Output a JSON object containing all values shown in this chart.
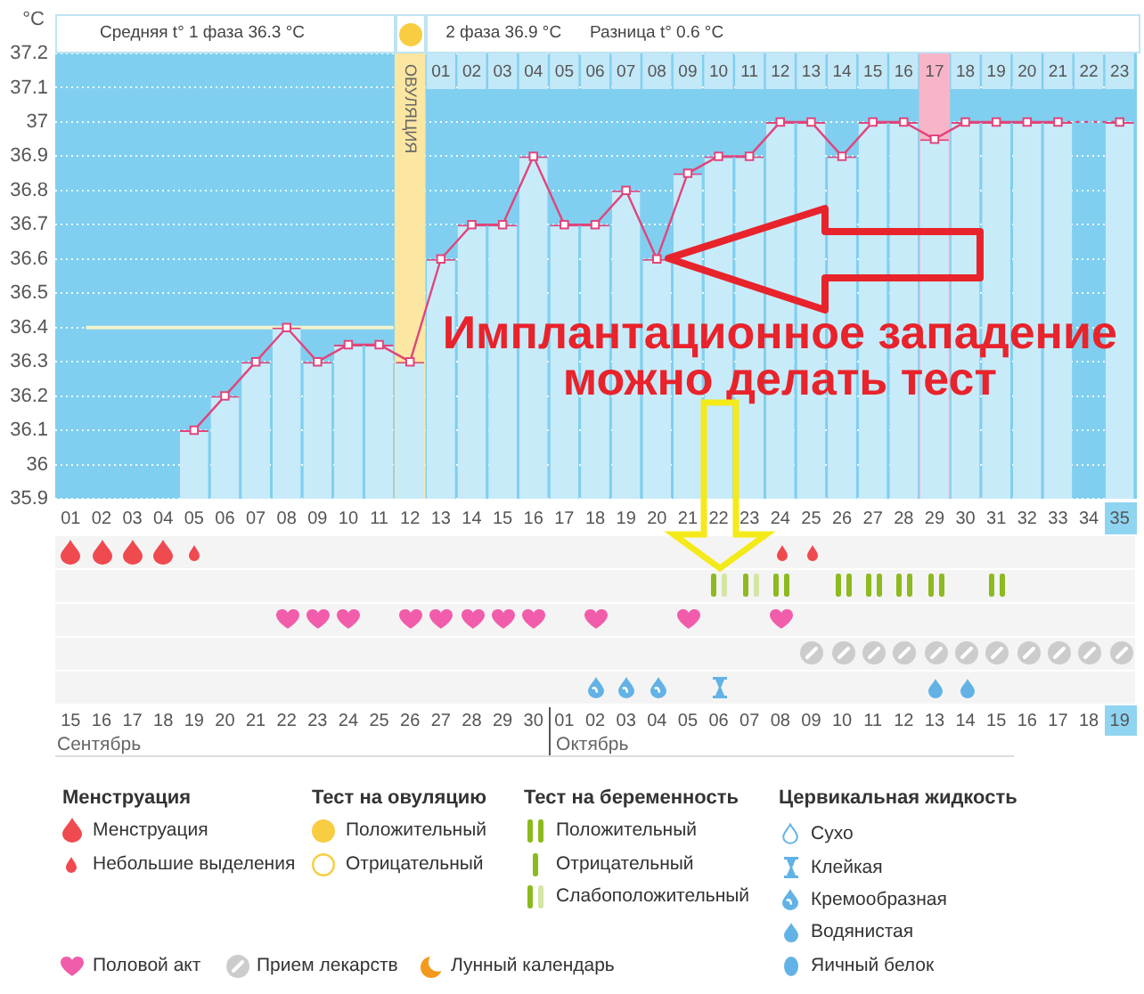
{
  "chart_data": {
    "type": "line",
    "ylabel": "°C",
    "x": [
      5,
      6,
      7,
      8,
      9,
      10,
      11,
      12,
      13,
      14,
      15,
      16,
      17,
      18,
      19,
      20,
      21,
      22,
      23,
      24,
      25,
      26,
      27,
      28,
      29,
      30,
      31,
      32,
      33,
      35
    ],
    "xlim": [
      0.5,
      35.5
    ],
    "xticks": [
      {
        "value": 1,
        "label": "01"
      },
      {
        "value": 2,
        "label": "02"
      },
      {
        "value": 3,
        "label": "03"
      },
      {
        "value": 4,
        "label": "04"
      },
      {
        "value": 5,
        "label": "05"
      },
      {
        "value": 6,
        "label": "06"
      },
      {
        "value": 7,
        "label": "07"
      },
      {
        "value": 8,
        "label": "08"
      },
      {
        "value": 9,
        "label": "09"
      },
      10,
      11,
      12,
      13,
      14,
      15,
      16,
      17,
      18,
      19,
      20,
      21,
      22,
      23,
      24,
      25,
      26,
      27,
      28,
      29,
      30,
      31,
      32,
      33,
      34,
      35
    ],
    "x2lim": [
      -11.5,
      23.5
    ],
    "x2ticks": [
      {
        "value": 1,
        "label": "01"
      },
      {
        "value": 2,
        "label": "02"
      },
      {
        "value": 3,
        "label": "03"
      },
      {
        "value": 4,
        "label": "04"
      },
      {
        "value": 5,
        "label": "05"
      },
      {
        "value": 6,
        "label": "06"
      },
      {
        "value": 7,
        "label": "07"
      },
      {
        "value": 8,
        "label": "08"
      },
      {
        "value": 9,
        "label": "09"
      },
      10,
      11,
      12,
      13,
      14,
      15,
      16,
      17,
      18,
      19,
      20,
      21,
      22,
      23
    ],
    "ylim": [
      35.9,
      37.2
    ],
    "yticks": [
      35.9,
      36,
      36.1,
      36.2,
      36.3,
      36.4,
      36.5,
      36.6,
      36.7,
      36.8,
      36.9,
      37,
      37.1,
      37.2
    ],
    "series": [
      {
        "type": "line",
        "x": [
          1.5,
          11.45
        ],
        "values": [
          36.4,
          36.4
        ],
        "color": "#f2f2cc",
        "marker": "none"
      },
      {
        "type": "bar",
        "values": [
          36.1,
          36.2,
          36.3,
          36.4,
          36.3,
          36.35,
          36.35,
          36.3,
          36.6,
          36.7,
          36.7,
          36.9,
          36.7,
          36.7,
          36.8,
          36.6,
          36.85,
          36.9,
          36.9,
          37,
          37,
          36.9,
          37,
          37,
          36.95,
          37,
          37,
          37,
          37,
          37
        ],
        "color": "#c8ebfa"
      },
      {
        "values": [
          36.1,
          36.2,
          36.3,
          36.4,
          36.3,
          36.35,
          36.35,
          36.3,
          36.6,
          36.7,
          36.7,
          36.9,
          36.7,
          36.7,
          36.8,
          36.6,
          36.85,
          36.9,
          36.9,
          37,
          37,
          36.9,
          37,
          37,
          36.95,
          37,
          37,
          37,
          37,
          37
        ],
        "color": "#e0457b"
      }
    ],
    "bands": [
      {
        "axis": "x",
        "from": 11.5,
        "to": 12.5,
        "color": "#fbe6a2"
      },
      {
        "axis": "x",
        "from": 28.5,
        "to": 29.5,
        "color": "#f8b5c8"
      }
    ],
    "annotations": [
      "Средняя t° 1 фаза 36.3 °C",
      "2 фаза 36.9 °C",
      "Разница t° 0.6 °C",
      "ОВУЛЯЦИЯ",
      {
        "text": "Имплантационное западение можно делать тест",
        "x": 20,
        "y": 36.6
      },
      "15",
      "16",
      "17",
      "18",
      "19",
      "20",
      "21",
      "22",
      "23",
      "24",
      "25",
      "26",
      "27",
      "28",
      "29",
      "30",
      "01",
      "02",
      "03",
      "04",
      "05",
      "06",
      "07",
      "08",
      "09",
      "10",
      "11",
      "12",
      "13",
      "14",
      "15",
      "16",
      "17",
      "18",
      "19",
      "Сентябрь",
      "Октябрь",
      "Менструация",
      "Менструация",
      "Небольшие выделения",
      "Тест на овуляцию",
      "Положительный",
      "Отрицательный",
      "Тест на беременность",
      "Положительный",
      "Отрицательный",
      "Слабоположительный",
      "Цервикальная жидкость",
      "Сухо",
      "Клейкая",
      "Кремообразная",
      "Водянистая",
      "Яичный белок",
      "Половой акт",
      "Прием лекарств",
      "Лунный календарь"
    ],
    "grid": "y",
    "marker": "square"
  }
}
